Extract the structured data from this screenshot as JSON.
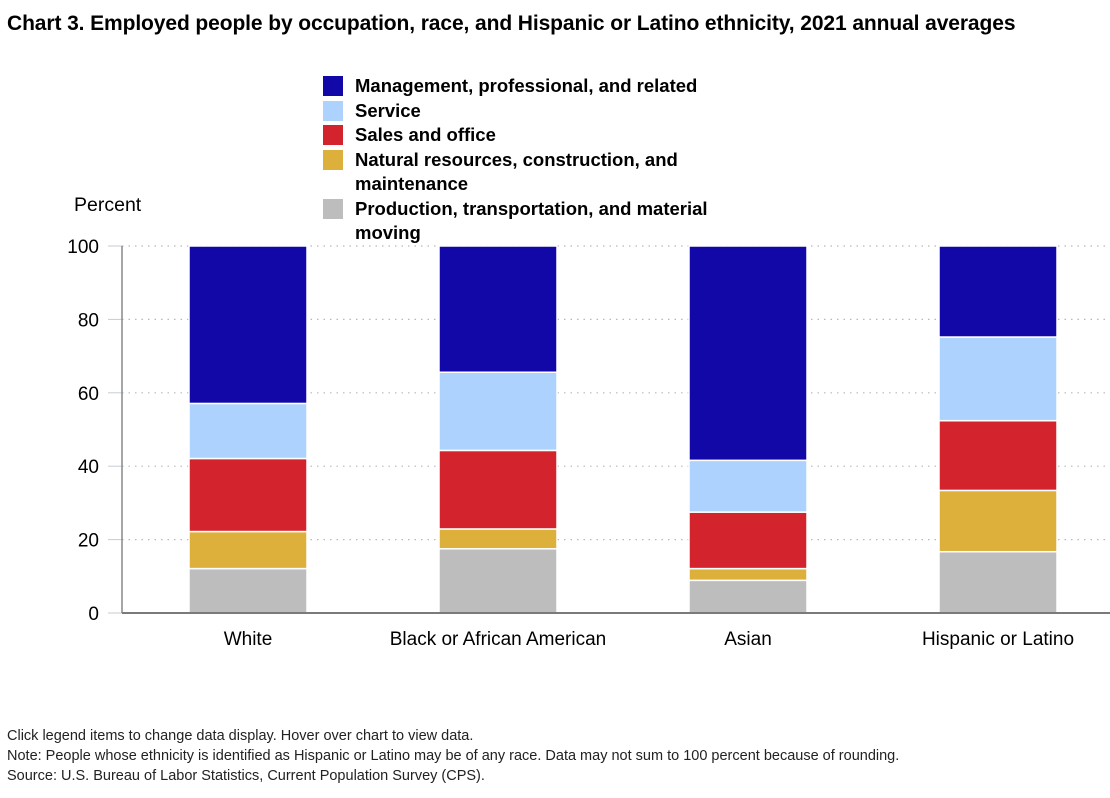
{
  "title": "Chart 3. Employed people by occupation, race, and Hispanic or Latino ethnicity, 2021 annual averages",
  "notes": {
    "instructions": "Click legend items to change data display. Hover over chart to view data.",
    "note": "Note: People whose ethnicity is identified as Hispanic or Latino may be of any race. Data may not sum to 100 percent because of rounding.",
    "source": "Source: U.S. Bureau of Labor Statistics, Current Population Survey (CPS)."
  },
  "chart_data": {
    "type": "bar",
    "stacked": true,
    "title": "Chart 3. Employed people by occupation, race, and Hispanic or Latino ethnicity, 2021 annual averages",
    "xlabel": "",
    "ylabel": "Percent",
    "ylim": [
      0,
      100
    ],
    "yticks": [
      0,
      20,
      40,
      60,
      80,
      100
    ],
    "grid": true,
    "legend_position": "top",
    "categories": [
      "White",
      "Black or African American",
      "Asian",
      "Hispanic or Latino"
    ],
    "series": [
      {
        "name": "Production, transportation, and material moving",
        "color": "#bdbdbd",
        "values": [
          12.1,
          17.5,
          8.9,
          16.7
        ]
      },
      {
        "name": "Natural resources, construction, and maintenance",
        "color": "#dcb03a",
        "values": [
          10.1,
          5.4,
          3.2,
          16.7
        ]
      },
      {
        "name": "Sales and office",
        "color": "#d3232c",
        "values": [
          19.9,
          21.4,
          15.4,
          19.0
        ]
      },
      {
        "name": "Service",
        "color": "#aed2fe",
        "values": [
          15.0,
          21.3,
          14.1,
          22.8
        ]
      },
      {
        "name": "Management, professional, and related",
        "color": "#1207a7",
        "values": [
          42.9,
          34.4,
          58.4,
          24.8
        ]
      }
    ],
    "legend_order": [
      "Management, professional, and related",
      "Service",
      "Sales and office",
      "Natural resources, construction, and maintenance",
      "Production, transportation, and material moving"
    ]
  }
}
